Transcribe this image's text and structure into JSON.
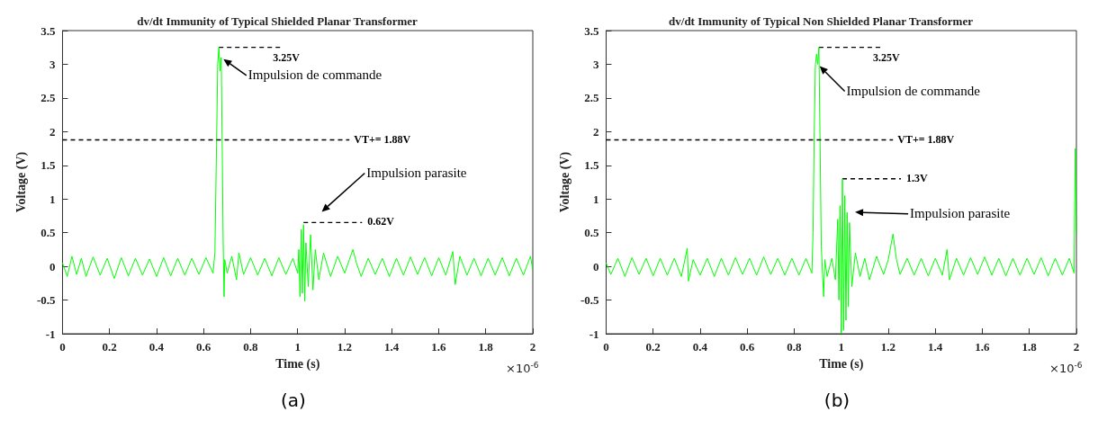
{
  "chart_data": [
    {
      "type": "line",
      "title": "dv/dt Immunity of Typical Shielded Planar Transformer",
      "xlabel": "Time (s)",
      "ylabel": "Voltage (V)",
      "xlim": [
        0,
        2
      ],
      "xticks": [
        0,
        0.2,
        0.4,
        0.6,
        0.8,
        1,
        1.2,
        1.4,
        1.6,
        1.8,
        2
      ],
      "ylim": [
        -1,
        3.5
      ],
      "yticks": [
        -1,
        -0.5,
        0,
        0.5,
        1,
        1.5,
        2,
        2.5,
        3,
        3.5
      ],
      "grid": false,
      "marker": "none",
      "line_style": "solid",
      "ref_lines": [
        {
          "axis": "y",
          "value": 1.88,
          "label": "VT+= 1.88V",
          "color": "#000000",
          "line_style": "dashed"
        }
      ],
      "annotations": [
        {
          "text": "3.25V",
          "x": 0.665,
          "y": 3.25
        },
        {
          "text": "Impulsion de commande",
          "x": 0.675,
          "y": 3.1
        },
        "Impulsion parasite",
        {
          "text": "0.62V",
          "x": 1.025,
          "y": 0.65
        },
        "×10$^{-6}$",
        "(a)"
      ],
      "series": [
        {
          "color": "#00ff00",
          "x": [
            0,
            0.02,
            0.04,
            0.06,
            0.08,
            0.1,
            0.13,
            0.16,
            0.19,
            0.22,
            0.25,
            0.28,
            0.31,
            0.34,
            0.37,
            0.4,
            0.43,
            0.46,
            0.49,
            0.52,
            0.55,
            0.58,
            0.61,
            0.64,
            0.648,
            0.655,
            0.66,
            0.665,
            0.67,
            0.675,
            0.68,
            0.683,
            0.687,
            0.69,
            0.7,
            0.72,
            0.74,
            0.75,
            0.77,
            0.8,
            0.83,
            0.86,
            0.89,
            0.92,
            0.95,
            0.98,
            1.0,
            1.005,
            1.01,
            1.015,
            1.02,
            1.025,
            1.03,
            1.035,
            1.045,
            1.055,
            1.065,
            1.075,
            1.09,
            1.11,
            1.14,
            1.17,
            1.2,
            1.22,
            1.235,
            1.25,
            1.27,
            1.3,
            1.33,
            1.36,
            1.39,
            1.42,
            1.45,
            1.48,
            1.51,
            1.54,
            1.57,
            1.6,
            1.63,
            1.66,
            1.67,
            1.69,
            1.72,
            1.75,
            1.78,
            1.81,
            1.84,
            1.87,
            1.9,
            1.93,
            1.96,
            1.99,
            2.0
          ],
          "values": [
            0.05,
            -0.15,
            0.15,
            -0.12,
            0.12,
            -0.15,
            0.14,
            -0.13,
            0.12,
            -0.18,
            0.13,
            -0.14,
            0.12,
            -0.13,
            0.11,
            -0.15,
            0.13,
            -0.14,
            0.12,
            -0.13,
            0.12,
            -0.12,
            0.13,
            -0.1,
            0.2,
            1.8,
            3.0,
            3.25,
            2.9,
            3.1,
            1.5,
            0.4,
            -0.45,
            0.1,
            -0.1,
            0.15,
            -0.2,
            0.2,
            -0.12,
            0.13,
            -0.13,
            0.12,
            -0.14,
            0.13,
            -0.12,
            0.12,
            -0.1,
            0.25,
            -0.45,
            0.55,
            -0.4,
            0.62,
            -0.52,
            0.35,
            -0.3,
            0.47,
            -0.35,
            0.25,
            -0.2,
            0.2,
            -0.15,
            0.15,
            -0.1,
            0.1,
            0.25,
            0.05,
            -0.15,
            0.12,
            -0.12,
            0.12,
            -0.15,
            0.12,
            -0.13,
            0.14,
            -0.12,
            0.13,
            -0.14,
            0.13,
            -0.13,
            0.22,
            -0.27,
            0.15,
            -0.13,
            0.12,
            -0.14,
            0.12,
            -0.13,
            0.13,
            -0.14,
            0.12,
            -0.13,
            0.15,
            -0.05
          ]
        }
      ]
    },
    {
      "type": "line",
      "title": "dv/dt Immunity of Typical Non Shielded Planar Transformer",
      "xlabel": "Time (s)",
      "ylabel": "Voltage (V)",
      "xlim": [
        0,
        2
      ],
      "xticks": [
        0,
        0.2,
        0.4,
        0.6,
        0.8,
        1,
        1.2,
        1.4,
        1.6,
        1.8,
        2
      ],
      "ylim": [
        -1,
        3.5
      ],
      "yticks": [
        -1,
        -0.5,
        0,
        0.5,
        1,
        1.5,
        2,
        2.5,
        3,
        3.5
      ],
      "grid": false,
      "marker": "none",
      "line_style": "solid",
      "ref_lines": [
        {
          "axis": "y",
          "value": 1.88,
          "label": "VT+= 1.88V",
          "color": "#000000",
          "line_style": "dashed"
        }
      ],
      "annotations": [
        {
          "text": "3.25V",
          "x": 0.905,
          "y": 3.25
        },
        {
          "text": "Impulsion de commande",
          "x": 0.9,
          "y": 3.0
        },
        {
          "text": "1.3V",
          "x": 1.005,
          "y": 1.3
        },
        "Impulsion parasite",
        "×10$^{-6}$",
        "(b)"
      ],
      "series": [
        {
          "color": "#00ff00",
          "x": [
            0,
            0.02,
            0.05,
            0.08,
            0.11,
            0.14,
            0.17,
            0.2,
            0.23,
            0.26,
            0.29,
            0.32,
            0.345,
            0.35,
            0.37,
            0.4,
            0.43,
            0.46,
            0.49,
            0.52,
            0.55,
            0.58,
            0.61,
            0.64,
            0.67,
            0.7,
            0.73,
            0.76,
            0.79,
            0.82,
            0.85,
            0.875,
            0.88,
            0.885,
            0.89,
            0.895,
            0.9,
            0.905,
            0.91,
            0.915,
            0.925,
            0.93,
            0.94,
            0.96,
            0.975,
            0.985,
            0.99,
            0.995,
            1.0,
            1.005,
            1.01,
            1.015,
            1.02,
            1.025,
            1.03,
            1.035,
            1.045,
            1.06,
            1.08,
            1.1,
            1.12,
            1.15,
            1.18,
            1.2,
            1.22,
            1.235,
            1.25,
            1.28,
            1.31,
            1.34,
            1.37,
            1.4,
            1.43,
            1.45,
            1.46,
            1.49,
            1.52,
            1.55,
            1.58,
            1.61,
            1.64,
            1.67,
            1.7,
            1.73,
            1.76,
            1.79,
            1.82,
            1.85,
            1.88,
            1.91,
            1.94,
            1.97,
            1.99,
            1.995,
            2.0
          ],
          "values": [
            0.05,
            -0.12,
            0.12,
            -0.15,
            0.13,
            -0.12,
            0.12,
            -0.14,
            0.12,
            -0.13,
            0.12,
            -0.15,
            0.27,
            -0.22,
            0.1,
            -0.13,
            0.12,
            -0.15,
            0.12,
            -0.13,
            0.13,
            -0.12,
            0.12,
            -0.13,
            0.14,
            -0.12,
            0.12,
            -0.13,
            0.12,
            -0.13,
            0.12,
            -0.1,
            0.5,
            2.0,
            3.0,
            3.15,
            3.0,
            3.25,
            1.8,
            0.3,
            -0.45,
            0.1,
            -0.15,
            0.12,
            -0.2,
            0.7,
            -0.5,
            0.9,
            -1.0,
            1.3,
            -0.95,
            1.05,
            -0.8,
            0.8,
            -0.6,
            0.65,
            -0.3,
            0.2,
            -0.15,
            0.12,
            -0.2,
            0.15,
            -0.12,
            0.1,
            0.48,
            0.1,
            -0.12,
            0.12,
            -0.13,
            0.12,
            -0.14,
            0.12,
            -0.13,
            0.25,
            -0.2,
            0.12,
            -0.13,
            0.13,
            -0.12,
            0.14,
            -0.13,
            0.12,
            -0.14,
            0.12,
            -0.13,
            0.12,
            -0.12,
            0.13,
            -0.14,
            0.12,
            -0.13,
            0.12,
            -0.1,
            1.75,
            0.5
          ]
        }
      ]
    }
  ]
}
